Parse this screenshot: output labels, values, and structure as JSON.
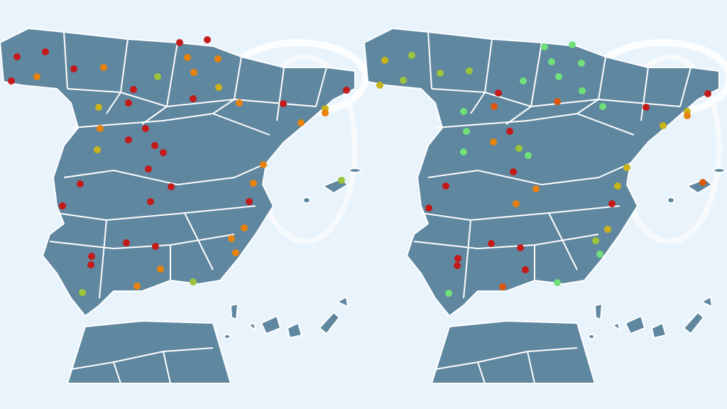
{
  "maps": [
    {
      "dots": [
        "#c41a1a",
        "#c41a1a",
        "#c41a1a",
        "#e8820c",
        "#c41a1a",
        "#e8820c",
        "#c41a1a",
        "#9bc43a",
        "#c41a1a",
        "#c9b21a",
        "#e8820c",
        "#c41a1a",
        "#c41a1a",
        "#c9b21a",
        "#c41a1a",
        "#c41a1a",
        "#c41a1a",
        "#c41a1a",
        "#c41a1a",
        "#c41a1a",
        "#c41a1a",
        "#c41a1a",
        "#c41a1a",
        "#e8820c",
        "#e8820c",
        "#e8820c",
        "#c9b21a",
        "#c41a1a",
        "#e8820c",
        "#c41a1a",
        "#c9b21a",
        "#e8820c",
        "#e8820c",
        "#c41a1a",
        "#e8820c",
        "#9bc43a",
        "#e8820c",
        "#c41a1a",
        "#e8820c",
        "#e8820c",
        "#e8820c",
        "#c41a1a",
        "#c41a1a",
        "#c41a1a",
        "#c41a1a",
        "#e8820c",
        "#e8820c",
        "#9bc43a",
        "#9bc43a"
      ]
    },
    {
      "dots": [
        "#c9b21a",
        "#9bc43a",
        "#c9b21a",
        "#9bc43a",
        "#9bc43a",
        "#9bc43a",
        "#6fe07a",
        "#6fe07a",
        "#6fe07a",
        "#6fe07a",
        "#6fe07a",
        "#c41a1a",
        "#6fe07a",
        "#d9580c",
        "#d9580c",
        "#6fe07a",
        "#6fe07a",
        "#c41a1a",
        "#6fe07a",
        "#6fe07a",
        "#c41a1a",
        "#c9b21a",
        "#e8820c",
        "#c9b21a",
        "#c41a1a",
        "#6fe07a",
        "#e8820c",
        "#9bc43a",
        "#6fe07a",
        "#c41a1a",
        "#c9b21a",
        "#d9580c",
        "#c41a1a",
        "#e8820c",
        "#c9b21a",
        "#c41a1a",
        "#e8820c",
        "#c41a1a",
        "#c9b21a",
        "#9bc43a",
        "#6fe07a",
        "#c41a1a",
        "#c41a1a",
        "#c41a1a",
        "#c41a1a",
        "#c41a1a",
        "#d9580c",
        "#6fe07a",
        "#6fe07a"
      ]
    }
  ]
}
